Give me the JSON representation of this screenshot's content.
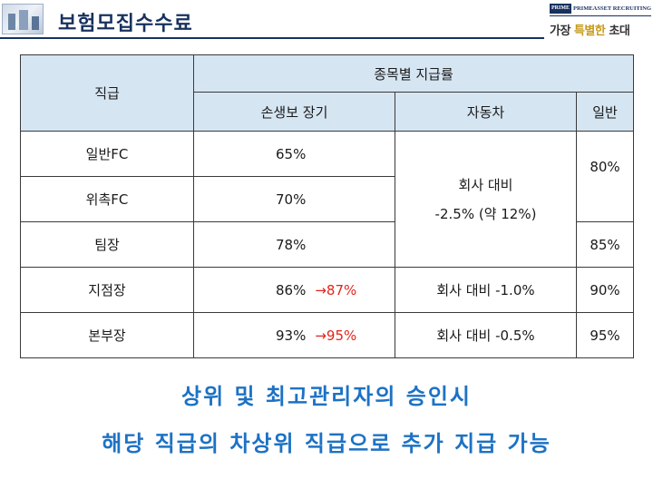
{
  "header": {
    "title": "보험모집수수료",
    "brand_box": "PRIME",
    "brand_name": "PRIMEASSET RECRUITING",
    "slogan_part1": "가장 ",
    "slogan_part2": "특별한",
    "slogan_part3": " 초대"
  },
  "table": {
    "col_rank": "직급",
    "col_group": "종목별 지급률",
    "sub_headers": [
      "손생보 장기",
      "자동차",
      "일반"
    ],
    "rows": [
      {
        "rank": "일반FC",
        "long_term": "65%"
      },
      {
        "rank": "위촉FC",
        "long_term": "70%"
      },
      {
        "rank": "팀장",
        "long_term": "78%"
      },
      {
        "rank": "지점장",
        "long_term": "86%",
        "arrow": "→",
        "new_rate": "87%",
        "auto": "회사 대비 -1.0%",
        "general": "90%"
      },
      {
        "rank": "본부장",
        "long_term": "93%",
        "arrow": "→",
        "new_rate": "95%",
        "auto": "회사 대비 -0.5%",
        "general": "95%"
      }
    ],
    "auto_merged_line1": "회사 대비",
    "auto_merged_line2": "-2.5% (약 12%)",
    "general_merged": "80%",
    "general_team": "85%"
  },
  "notes": {
    "line1": "상위 및 최고관리자의 승인시",
    "line2": "해당 직급의 차상위 직급으로 추가 지급 가능"
  },
  "colors": {
    "title": "#17315f",
    "header_fill": "#d6e5f2",
    "highlight": "#e0241b",
    "note": "#1d72c4",
    "brand_gold": "#c69a1b"
  }
}
